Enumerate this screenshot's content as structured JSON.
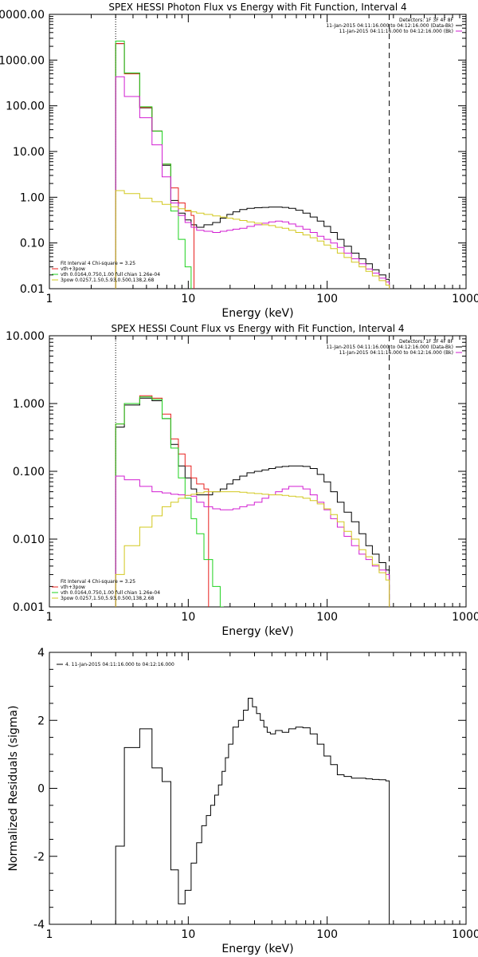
{
  "colors": {
    "black": "#000000",
    "red": "#e8201e",
    "green": "#1ed21e",
    "magenta": "#d21ed2",
    "yellow": "#d2c81e",
    "background": "#ffffff"
  },
  "chart_data": [
    {
      "id": "photon",
      "type": "line",
      "title": "SPEX HESSI Photon Flux vs Energy with Fit Function, Interval 4",
      "xlabel": "Energy (keV)",
      "ylabel": "",
      "xscale": "log",
      "yscale": "log",
      "xlim": [
        1,
        1000
      ],
      "ylim": [
        0.01,
        10000
      ],
      "xticks": [
        1,
        10,
        100,
        1000
      ],
      "xtick_labels": [
        "1",
        "10",
        "100",
        "1000"
      ],
      "yticks": [
        0.01,
        0.1,
        1,
        10,
        100,
        1000,
        10000
      ],
      "ytick_labels": [
        "0.01",
        "0.10",
        "1.00",
        "10.00",
        "100.00",
        "1000.00",
        "10000.00"
      ],
      "vlines": [
        {
          "x": 3.0,
          "style": "dotted"
        },
        {
          "x": 280,
          "style": "dashed"
        }
      ],
      "legend_topright": {
        "position": "top-right",
        "lines": [
          "Detectors: 1F 3F 4F 8F",
          "11-Jan-2015 04:11:16.000 to 04:12:16.000 (Data-Bk)",
          "11-Jan-2015 04:11:16.000 to 04:12:16.000 (Bk)"
        ],
        "colors": [
          "",
          "#000000",
          "#d21ed2"
        ]
      },
      "legend_bottomleft": {
        "position": "bottom-left",
        "lines": [
          "Fit Interval  4    Chi-square = 3.25",
          "vth+3pow",
          "vth 0.0164,0.750,1.00  full chian 1.26e-04",
          "3pow 0.0257,1.50,5.93,0.500,138,2.68"
        ],
        "colors": [
          "",
          "#e8201e",
          "#1ed21e",
          "#d2c81e"
        ]
      },
      "series": [
        {
          "color": "#000000",
          "x": [
            3,
            4,
            5,
            6,
            7,
            8,
            9,
            10,
            11,
            12,
            14,
            16,
            18,
            20,
            22,
            25,
            28,
            32,
            36,
            40,
            45,
            50,
            56,
            63,
            71,
            80,
            90,
            100,
            112,
            125,
            140,
            160,
            180,
            200,
            224,
            250,
            280
          ],
          "y": [
            2300,
            520,
            90,
            28,
            5.0,
            0.85,
            0.45,
            0.32,
            0.25,
            0.22,
            0.25,
            0.28,
            0.35,
            0.42,
            0.48,
            0.54,
            0.57,
            0.59,
            0.6,
            0.61,
            0.61,
            0.6,
            0.57,
            0.52,
            0.45,
            0.37,
            0.3,
            0.23,
            0.17,
            0.12,
            0.085,
            0.06,
            0.045,
            0.035,
            0.026,
            0.02,
            0.016
          ]
        },
        {
          "color": "#e8201e",
          "x": [
            3,
            4,
            5,
            6,
            7,
            8,
            9,
            10,
            11
          ],
          "y": [
            2300,
            500,
            92,
            28,
            5.3,
            1.6,
            0.75,
            0.5,
            0.4
          ]
        },
        {
          "color": "#1ed21e",
          "x": [
            3,
            4,
            5,
            6,
            7,
            8,
            9,
            10,
            11
          ],
          "y": [
            2600,
            520,
            95,
            28,
            5.3,
            0.5,
            0.12,
            0.03,
            0.005
          ]
        },
        {
          "color": "#d21ed2",
          "x": [
            3,
            4,
            5,
            6,
            7,
            8,
            9,
            10,
            11,
            12,
            14,
            16,
            18,
            20,
            22,
            25,
            28,
            32,
            36,
            40,
            45,
            50,
            56,
            63,
            71,
            80,
            90,
            100,
            112,
            125,
            140,
            160,
            180,
            200,
            224,
            250,
            280
          ],
          "y": [
            430,
            160,
            55,
            14,
            2.8,
            0.75,
            0.4,
            0.28,
            0.22,
            0.19,
            0.18,
            0.17,
            0.18,
            0.19,
            0.2,
            0.21,
            0.23,
            0.25,
            0.27,
            0.29,
            0.3,
            0.29,
            0.26,
            0.23,
            0.2,
            0.17,
            0.14,
            0.12,
            0.1,
            0.08,
            0.06,
            0.045,
            0.035,
            0.027,
            0.022,
            0.017,
            0.014
          ]
        },
        {
          "color": "#d2c81e",
          "x": [
            3,
            4,
            5,
            6,
            7,
            8,
            9,
            10,
            11,
            12,
            14,
            16,
            18,
            20,
            22,
            25,
            28,
            32,
            36,
            40,
            45,
            50,
            56,
            63,
            71,
            80,
            90,
            100,
            112,
            125,
            140,
            160,
            180,
            200,
            224,
            250,
            280
          ],
          "y": [
            1.4,
            1.2,
            0.95,
            0.8,
            0.7,
            0.62,
            0.56,
            0.52,
            0.48,
            0.45,
            0.42,
            0.39,
            0.37,
            0.35,
            0.33,
            0.31,
            0.29,
            0.27,
            0.25,
            0.24,
            0.22,
            0.21,
            0.19,
            0.17,
            0.15,
            0.13,
            0.11,
            0.09,
            0.075,
            0.06,
            0.048,
            0.038,
            0.03,
            0.024,
            0.019,
            0.015,
            0.012
          ]
        }
      ]
    },
    {
      "id": "count",
      "type": "line",
      "title": "SPEX HESSI Count Flux vs Energy with Fit Function, Interval 4",
      "xlabel": "Energy (keV)",
      "ylabel": "",
      "xscale": "log",
      "yscale": "log",
      "xlim": [
        1,
        1000
      ],
      "ylim": [
        0.001,
        10
      ],
      "xticks": [
        1,
        10,
        100,
        1000
      ],
      "xtick_labels": [
        "1",
        "10",
        "100",
        "1000"
      ],
      "yticks": [
        0.001,
        0.01,
        0.1,
        1,
        10
      ],
      "ytick_labels": [
        "0.001",
        "0.010",
        "0.100",
        "1.000",
        "10.000"
      ],
      "vlines": [
        {
          "x": 3.0,
          "style": "dotted"
        },
        {
          "x": 280,
          "style": "dashed"
        }
      ],
      "legend_topright": {
        "position": "top-right",
        "lines": [
          "Detectors: 1F 3F 4F 8F",
          "11-Jan-2015 04:11:16.000 to 04:12:16.000 (Data-Bk)",
          "11-Jan-2015 04:11:16.000 to 04:12:16.000 (Bk)"
        ],
        "colors": [
          "",
          "#000000",
          "#d21ed2"
        ]
      },
      "legend_bottomleft": {
        "position": "bottom-left",
        "lines": [
          "Fit Interval  4    Chi-square = 3.25",
          "vth+3pow",
          "vth 0.0164,0.750,1.00  full chian 1.26e-04",
          "3pow 0.0257,1.50,5.93,0.500,138,2.68"
        ],
        "colors": [
          "",
          "#e8201e",
          "#1ed21e",
          "#d2c81e"
        ]
      },
      "series": [
        {
          "color": "#000000",
          "x": [
            3,
            4,
            5,
            6,
            7,
            8,
            9,
            10,
            11,
            12,
            14,
            16,
            18,
            20,
            22,
            25,
            28,
            32,
            36,
            40,
            45,
            50,
            56,
            63,
            71,
            80,
            90,
            100,
            112,
            125,
            140,
            160,
            180,
            200,
            224,
            250,
            280
          ],
          "y": [
            0.45,
            0.95,
            1.2,
            1.1,
            0.6,
            0.25,
            0.12,
            0.08,
            0.055,
            0.045,
            0.045,
            0.05,
            0.055,
            0.065,
            0.075,
            0.085,
            0.095,
            0.1,
            0.105,
            0.11,
            0.115,
            0.118,
            0.12,
            0.12,
            0.118,
            0.11,
            0.09,
            0.07,
            0.05,
            0.035,
            0.025,
            0.018,
            0.012,
            0.008,
            0.006,
            0.0045,
            0.0035
          ]
        },
        {
          "color": "#e8201e",
          "x": [
            3,
            4,
            5,
            6,
            7,
            8,
            9,
            10,
            11,
            12,
            14
          ],
          "y": [
            0.5,
            1.0,
            1.3,
            1.2,
            0.7,
            0.3,
            0.18,
            0.12,
            0.08,
            0.065,
            0.055
          ]
        },
        {
          "color": "#1ed21e",
          "x": [
            3,
            4,
            5,
            6,
            7,
            8,
            9,
            10,
            11,
            12,
            14,
            16,
            18
          ],
          "y": [
            0.5,
            1.0,
            1.25,
            1.15,
            0.6,
            0.22,
            0.08,
            0.04,
            0.02,
            0.012,
            0.005,
            0.002,
            0.001
          ]
        },
        {
          "color": "#d21ed2",
          "x": [
            3,
            4,
            5,
            6,
            7,
            8,
            9,
            10,
            11,
            12,
            14,
            16,
            18,
            20,
            22,
            25,
            28,
            32,
            36,
            40,
            45,
            50,
            56,
            63,
            71,
            80,
            90,
            100,
            112,
            125,
            140,
            160,
            180,
            200,
            224,
            250,
            280
          ],
          "y": [
            0.085,
            0.075,
            0.06,
            0.05,
            0.048,
            0.046,
            0.045,
            0.044,
            0.043,
            0.035,
            0.03,
            0.028,
            0.027,
            0.027,
            0.028,
            0.03,
            0.032,
            0.035,
            0.04,
            0.045,
            0.05,
            0.055,
            0.06,
            0.06,
            0.055,
            0.045,
            0.035,
            0.027,
            0.02,
            0.015,
            0.011,
            0.008,
            0.006,
            0.005,
            0.004,
            0.0035,
            0.003
          ]
        },
        {
          "color": "#d2c81e",
          "x": [
            3,
            4,
            5,
            6,
            7,
            8,
            9,
            10,
            11,
            12,
            14,
            16,
            18,
            20,
            22,
            25,
            28,
            32,
            36,
            40,
            45,
            50,
            56,
            63,
            71,
            80,
            90,
            100,
            112,
            125,
            140,
            160,
            180,
            200,
            224,
            250,
            280
          ],
          "y": [
            0.003,
            0.008,
            0.015,
            0.022,
            0.03,
            0.035,
            0.04,
            0.044,
            0.046,
            0.048,
            0.05,
            0.05,
            0.05,
            0.05,
            0.05,
            0.049,
            0.048,
            0.047,
            0.046,
            0.045,
            0.045,
            0.044,
            0.043,
            0.042,
            0.04,
            0.037,
            0.033,
            0.028,
            0.023,
            0.018,
            0.013,
            0.01,
            0.007,
            0.0055,
            0.0042,
            0.0032,
            0.0025
          ]
        }
      ]
    },
    {
      "id": "residuals",
      "type": "line",
      "title": "",
      "xlabel": "Energy (keV)",
      "ylabel": "Normalized Residuals (sigma)",
      "xscale": "log",
      "yscale": "linear",
      "xlim": [
        1,
        1000
      ],
      "ylim": [
        -4,
        4
      ],
      "xticks": [
        1,
        10,
        100,
        1000
      ],
      "xtick_labels": [
        "1",
        "10",
        "100",
        "1000"
      ],
      "yticks": [
        -4,
        -2,
        0,
        2,
        4
      ],
      "ytick_labels": [
        "-4",
        "-2",
        "0",
        "2",
        "4"
      ],
      "legend_topright": null,
      "legend_bottomleft": null,
      "legend_topleft": {
        "position": "top-left",
        "lines": [
          "4. 11-Jan-2015 04:11:16.000 to 04:12:16.000"
        ],
        "colors": [
          "#000000"
        ]
      },
      "series": [
        {
          "color": "#000000",
          "x": [
            3,
            4,
            5,
            6,
            7,
            8,
            9,
            10,
            11,
            12,
            13,
            14,
            15,
            16,
            17,
            18,
            19,
            20,
            22,
            24,
            26,
            28,
            30,
            32,
            34,
            36,
            38,
            40,
            45,
            50,
            56,
            63,
            71,
            80,
            90,
            100,
            112,
            125,
            140,
            160,
            180,
            200,
            224,
            250,
            280
          ],
          "y": [
            -1.7,
            1.2,
            1.75,
            0.6,
            0.2,
            -2.4,
            -3.4,
            -3.0,
            -2.2,
            -1.6,
            -1.1,
            -0.8,
            -0.5,
            -0.2,
            0.1,
            0.5,
            0.9,
            1.3,
            1.8,
            2.0,
            2.3,
            2.65,
            2.4,
            2.2,
            2.0,
            1.8,
            1.65,
            1.6,
            1.7,
            1.65,
            1.75,
            1.8,
            1.78,
            1.6,
            1.3,
            0.95,
            0.7,
            0.4,
            0.35,
            0.3,
            0.3,
            0.28,
            0.26,
            0.25,
            0.22
          ]
        }
      ]
    }
  ]
}
